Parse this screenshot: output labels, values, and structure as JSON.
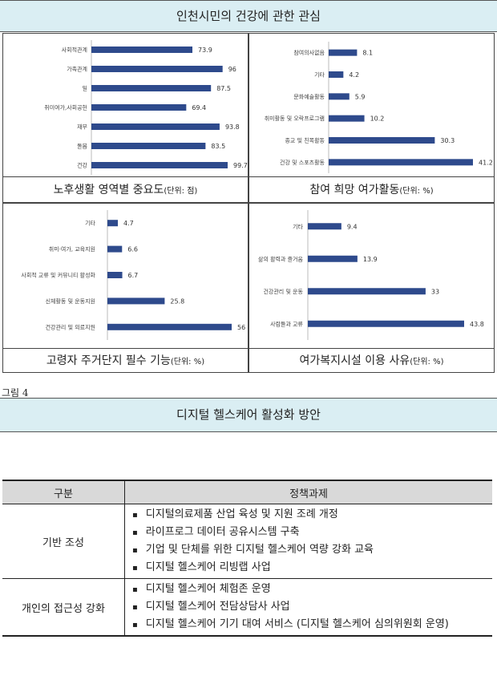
{
  "header": {
    "title": "인천시민의 건강에 관한 관심"
  },
  "charts": [
    {
      "id": "c1",
      "caption_main": "노후생활 영역별 중요도",
      "caption_unit": "(단위: 점)"
    },
    {
      "id": "c2",
      "caption_main": "참여 희망 여가활동",
      "caption_unit": "(단위: %)"
    },
    {
      "id": "c3",
      "caption_main": "고령자 주거단지 필수 기능",
      "caption_unit": "(단위: %)"
    },
    {
      "id": "c4",
      "caption_main": "여가복지시설 이용 사유",
      "caption_unit": "(단위: %)"
    }
  ],
  "chart_data": [
    {
      "type": "bar",
      "orientation": "horizontal",
      "title": "노후생활 영역별 중요도(단위: 점)",
      "categories": [
        "사회적관계",
        "가족관계",
        "일",
        "취미여가,사회공헌",
        "재무",
        "돌봄",
        "건강"
      ],
      "values": [
        73.9,
        96,
        87.5,
        69.4,
        93.8,
        83.5,
        99.7
      ],
      "color": "#2e4a8c"
    },
    {
      "type": "bar",
      "orientation": "horizontal",
      "title": "참여 희망 여가활동(단위: %)",
      "categories": [
        "참여의사없음",
        "기타",
        "문화예술활동",
        "취미활동 및 오락프로그램",
        "종교 및 친목활동",
        "건강 및 스포츠활동"
      ],
      "values": [
        8.1,
        4.2,
        5.9,
        10.2,
        30.3,
        41.2
      ],
      "color": "#2e4a8c"
    },
    {
      "type": "bar",
      "orientation": "horizontal",
      "title": "고령자 주거단지 필수 기능(단위: %)",
      "categories": [
        "기타",
        "취미·여가, 교육지원",
        "사회적 교류 및 커뮤니티 활성화",
        "신체활동 및 운동지원",
        "건강관리 및 의료지원"
      ],
      "values": [
        4.7,
        6.6,
        6.7,
        25.8,
        56
      ],
      "color": "#2e4a8c"
    },
    {
      "type": "bar",
      "orientation": "horizontal",
      "title": "여가복지시설 이용 사유(단위: %)",
      "categories": [
        "기타",
        "삶의 활력과 즐거움",
        "건강관리 및 운동",
        "사람들과 교류"
      ],
      "values": [
        9.4,
        13.9,
        33,
        43.8
      ],
      "color": "#2e4a8c"
    }
  ],
  "figure_label": "그림 4",
  "section": {
    "title": "디지털 헬스케어 활성화 방안"
  },
  "table": {
    "headers": [
      "구분",
      "정책과제"
    ],
    "rows": [
      {
        "category": "기반 조성",
        "items": [
          "디지털의료제품 산업 육성 및 지원 조례 개정",
          "라이프로그 데이터 공유시스템 구축",
          "기업 및 단체를 위한 디지털 헬스케어 역량 강화 교육",
          "디지털 헬스케어 리빙랩 사업"
        ]
      },
      {
        "category": "개인의 접근성 강화",
        "items": [
          "디지털 헬스케어 체험존 운영",
          "디지털 헬스케어 전담상담사 사업",
          "디지털 헬스케어 기기 대여 서비스 (디지털 헬스케어 심의위원회 운영)"
        ]
      }
    ]
  }
}
